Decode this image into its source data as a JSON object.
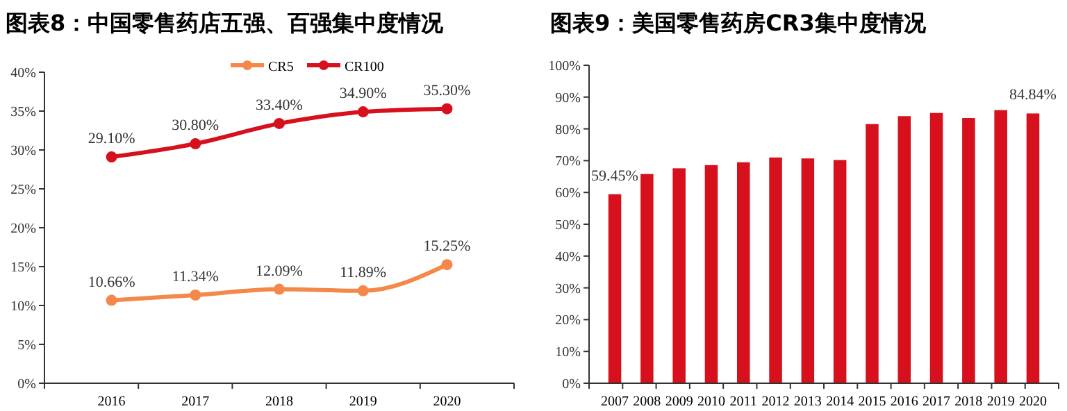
{
  "chart_data": [
    {
      "type": "line",
      "title": "图表8：中国零售药店五强、百强集中度情况",
      "categories": [
        "2016",
        "2017",
        "2018",
        "2019",
        "2020"
      ],
      "series": [
        {
          "name": "CR5",
          "color": "#f4884a",
          "values": [
            10.66,
            11.34,
            12.09,
            11.89,
            15.25
          ],
          "value_labels": [
            "10.66%",
            "11.34%",
            "12.09%",
            "11.89%",
            "15.25%"
          ]
        },
        {
          "name": "CR100",
          "color": "#d7101e",
          "values": [
            29.1,
            30.8,
            33.4,
            34.9,
            35.3
          ],
          "value_labels": [
            "29.10%",
            "30.80%",
            "33.40%",
            "34.90%",
            "35.30%"
          ]
        }
      ],
      "ylim": [
        0,
        40
      ],
      "yticks": [
        {
          "value": 0,
          "label": "0%"
        },
        {
          "value": 5,
          "label": "5%"
        },
        {
          "value": 10,
          "label": "10%"
        },
        {
          "value": 15,
          "label": "15%"
        },
        {
          "value": 20,
          "label": "20%"
        },
        {
          "value": 25,
          "label": "25%"
        },
        {
          "value": 30,
          "label": "30%"
        },
        {
          "value": 35,
          "label": "35%"
        },
        {
          "value": 40,
          "label": "40%"
        }
      ],
      "marker": "circle",
      "legend": "top",
      "grid": false
    },
    {
      "type": "bar",
      "title": "图表9：美国零售药房CR3集中度情况",
      "categories": [
        "2007",
        "2008",
        "2009",
        "2010",
        "2011",
        "2012",
        "2013",
        "2014",
        "2015",
        "2016",
        "2017",
        "2018",
        "2019",
        "2020"
      ],
      "values": [
        59.45,
        65.8,
        67.6,
        68.6,
        69.5,
        71.0,
        70.7,
        70.2,
        81.5,
        84.0,
        85.0,
        83.4,
        85.9,
        84.84
      ],
      "color": "#d7101e",
      "value_labels": [
        "59.45%",
        null,
        null,
        null,
        null,
        null,
        null,
        null,
        null,
        null,
        null,
        null,
        null,
        "84.84%"
      ],
      "ylim": [
        0,
        100
      ],
      "yticks": [
        {
          "value": 0,
          "label": "0%"
        },
        {
          "value": 10,
          "label": "10%"
        },
        {
          "value": 20,
          "label": "20%"
        },
        {
          "value": 30,
          "label": "30%"
        },
        {
          "value": 40,
          "label": "40%"
        },
        {
          "value": 50,
          "label": "50%"
        },
        {
          "value": 60,
          "label": "60%"
        },
        {
          "value": 70,
          "label": "70%"
        },
        {
          "value": 80,
          "label": "80%"
        },
        {
          "value": 90,
          "label": "90%"
        },
        {
          "value": 100,
          "label": "100%"
        }
      ],
      "grid": false
    }
  ]
}
